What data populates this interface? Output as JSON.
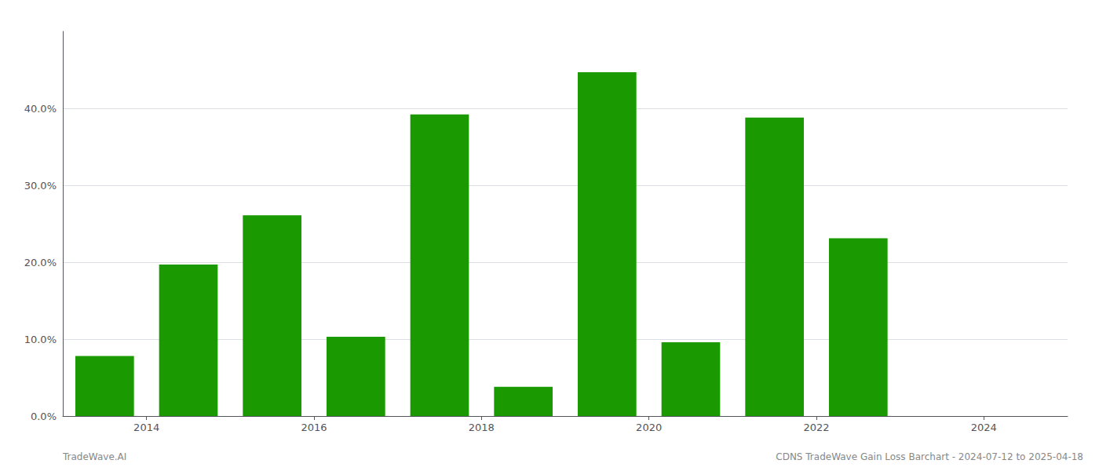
{
  "chart_data": {
    "type": "bar",
    "x": [
      2013.5,
      2014.5,
      2015.5,
      2016.5,
      2017.5,
      2018.5,
      2019.5,
      2020.5,
      2021.5,
      2022.5,
      2023.5
    ],
    "values": [
      0.078,
      0.197,
      0.261,
      0.103,
      0.392,
      0.038,
      0.447,
      0.096,
      0.388,
      0.231,
      0.0
    ],
    "color": "#1a9a00",
    "xlim": [
      2013.0,
      2025.0
    ],
    "xticks": [
      2014,
      2016,
      2018,
      2020,
      2022,
      2024
    ],
    "ylim": [
      0,
      0.5
    ],
    "yticks": [
      {
        "value": 0.0,
        "label": "0.0%"
      },
      {
        "value": 0.1,
        "label": "10.0%"
      },
      {
        "value": 0.2,
        "label": "20.0%"
      },
      {
        "value": 0.3,
        "label": "30.0%"
      },
      {
        "value": 0.4,
        "label": "40.0%"
      }
    ],
    "grid": "y",
    "annotations": [
      "TradeWave.AI",
      "CDNS TradeWave Gain Loss Barchart - 2024-07-12 to 2025-04-18"
    ]
  }
}
